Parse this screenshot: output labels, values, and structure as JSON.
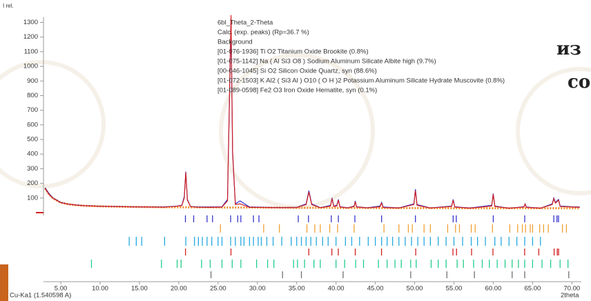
{
  "chart_data": {
    "type": "line",
    "y_label": "I rel.",
    "x_label": "2theta",
    "radiation": "Cu-Ka1 (1.540598 A)",
    "overlay_text": [
      "из",
      "со"
    ],
    "xlim": [
      2.8,
      71.2
    ],
    "ylim": [
      0,
      1340
    ],
    "xticks": [
      {
        "value": 5,
        "label": "5.00"
      },
      {
        "value": 10,
        "label": "10.00"
      },
      {
        "value": 15,
        "label": "15.00"
      },
      {
        "value": 20,
        "label": "20.00"
      },
      {
        "value": 25,
        "label": "25.00"
      },
      {
        "value": 30,
        "label": "30.00"
      },
      {
        "value": 35,
        "label": "35.00"
      },
      {
        "value": 40,
        "label": "40.00"
      },
      {
        "value": 45,
        "label": "45.00"
      },
      {
        "value": 50,
        "label": "50.00"
      },
      {
        "value": 55,
        "label": "55.00"
      },
      {
        "value": 60,
        "label": "60.00"
      },
      {
        "value": 65,
        "label": "65.00"
      },
      {
        "value": 70,
        "label": "70.00"
      }
    ],
    "yticks": [
      100,
      200,
      300,
      400,
      500,
      600,
      700,
      800,
      900,
      1000,
      1100,
      1200,
      1300
    ],
    "x": [
      3,
      3.5,
      4,
      5,
      6,
      7,
      8,
      10,
      12,
      14,
      16,
      18,
      19.8,
      20.4,
      20.7,
      20.9,
      21.1,
      21.5,
      22.5,
      24,
      25.5,
      26.2,
      26.45,
      26.65,
      26.85,
      27.2,
      27.8,
      29,
      31,
      33,
      35,
      36.2,
      36.55,
      36.9,
      38,
      39.3,
      39.5,
      39.7,
      40.1,
      40.3,
      40.5,
      41.5,
      42.3,
      42.45,
      42.6,
      44,
      45.6,
      45.8,
      46,
      48,
      49.9,
      50.1,
      50.3,
      52,
      54.7,
      54.9,
      55.1,
      57,
      59.8,
      60.0,
      60.2,
      62,
      63.9,
      64.05,
      64.2,
      66,
      67.5,
      67.7,
      67.9,
      68.1,
      68.3,
      68.5,
      70,
      71
    ],
    "series": [
      {
        "name": "6bl_Theta_2-Theta",
        "color": "#3434d0",
        "width": 1.2,
        "values": [
          170,
          130,
          100,
          70,
          58,
          52,
          48,
          44,
          42,
          40,
          39,
          38,
          45,
          50,
          110,
          280,
          90,
          42,
          38,
          38,
          40,
          90,
          750,
          1320,
          400,
          60,
          80,
          38,
          36,
          35,
          36,
          60,
          150,
          60,
          34,
          50,
          100,
          45,
          50,
          90,
          40,
          33,
          45,
          80,
          40,
          33,
          45,
          70,
          38,
          32,
          60,
          160,
          55,
          32,
          45,
          90,
          40,
          31,
          50,
          130,
          45,
          30,
          40,
          60,
          38,
          30,
          60,
          100,
          70,
          80,
          90,
          45,
          40,
          38
        ],
        "peaks": [
          20.85,
          21.9,
          23.6,
          24.3,
          26.6,
          27.5,
          27.9,
          29.5,
          30.2,
          35.2,
          36.5,
          39.4,
          40.3,
          42.4,
          45.8,
          50.1,
          54.9,
          55.3,
          60.0,
          64.0,
          67.7,
          68.1,
          68.3
        ]
      },
      {
        "name": "Calc. (exp. peaks) (Rp=36.7 %)",
        "color": "#d42020",
        "width": 1.2,
        "values": [
          165,
          125,
          98,
          68,
          57,
          51,
          47,
          43,
          41,
          39,
          38,
          37,
          44,
          48,
          100,
          275,
          85,
          41,
          37,
          36,
          38,
          80,
          780,
          1350,
          420,
          55,
          60,
          36,
          35,
          34,
          35,
          55,
          140,
          55,
          33,
          45,
          95,
          42,
          45,
          85,
          38,
          32,
          42,
          75,
          38,
          32,
          40,
          65,
          35,
          31,
          55,
          150,
          50,
          31,
          42,
          85,
          38,
          30,
          45,
          125,
          42,
          30,
          38,
          58,
          36,
          30,
          55,
          95,
          65,
          75,
          85,
          42,
          38,
          36
        ]
      },
      {
        "name": "Background",
        "color": "#f08a24",
        "width": 3,
        "dash": "2 2",
        "values": [
          165,
          125,
          98,
          68,
          57,
          51,
          47,
          43,
          41,
          39,
          38,
          37,
          37,
          37,
          37,
          37,
          37,
          36,
          36,
          36,
          35,
          35,
          35,
          35,
          35,
          35,
          35,
          35,
          34,
          34,
          33,
          33,
          33,
          33,
          33,
          33,
          33,
          33,
          32,
          32,
          32,
          32,
          32,
          32,
          32,
          32,
          31,
          31,
          31,
          31,
          31,
          31,
          31,
          31,
          30,
          30,
          30,
          30,
          30,
          30,
          30,
          30,
          30,
          30,
          30,
          30,
          30,
          30,
          30,
          30,
          30,
          30,
          30,
          30
        ]
      }
    ],
    "phases": [
      {
        "name": "[01-076-1936] Ti O2 Titanium Oxide Brookite (0.8%)",
        "color": "#f0a030",
        "positions": [
          25.3,
          30.8,
          32.8,
          36.3,
          37.3,
          38.0,
          39.2,
          40.2,
          42.3,
          46.1,
          48.0,
          49.2,
          49.7,
          51.2,
          52.0,
          54.2,
          55.2,
          55.7,
          57.2,
          57.7,
          59.9,
          62.1,
          63.1,
          63.7,
          64.1,
          64.7,
          65.0,
          65.9,
          66.4,
          67.0,
          68.8,
          69.3
        ]
      },
      {
        "name": "[01-075-1142] Na ( Al Si3 O8 ) Sodium Aluminum Silicate Albite high (9.7%)",
        "color": "#25a8e0",
        "positions": [
          13.7,
          14.6,
          15.3,
          18.2,
          20.9,
          22.0,
          22.5,
          23.0,
          23.6,
          24.2,
          25.0,
          25.5,
          26.6,
          27.2,
          27.9,
          28.3,
          29.0,
          29.5,
          30.1,
          30.5,
          31.2,
          32.0,
          33.1,
          34.3,
          35.0,
          35.6,
          36.2,
          36.8,
          37.5,
          38.3,
          39.0,
          40.0,
          41.2,
          42.0,
          43.0,
          44.1,
          45.0,
          45.8,
          46.5,
          47.2,
          48.0,
          48.8,
          49.6,
          50.4,
          51.2,
          52.0,
          53.0,
          54.0,
          55.0,
          56.1,
          57.2,
          58.0,
          59.0,
          60.2,
          61.0,
          62.0,
          63.0,
          64.0,
          65.0,
          66.0
        ]
      },
      {
        "name": "[00-046-1045] Si O2 Silicon Oxide Quartz, syn (88.6%)",
        "color": "#d42020",
        "positions": [
          20.86,
          26.64,
          36.54,
          39.47,
          40.29,
          42.45,
          45.79,
          50.14,
          54.87,
          55.33,
          57.24,
          59.96,
          63.99,
          65.79,
          67.74,
          68.14,
          68.31
        ]
      },
      {
        "name": "[01-072-1503] K Al2 ( Si3 Al ) O10 ( O H )2 Potassium Aluminum Silicate Hydrate Muscovite (0.8%)",
        "color": "#22cc88",
        "positions": [
          8.9,
          17.8,
          19.8,
          20.3,
          22.9,
          24.0,
          25.5,
          26.8,
          27.9,
          29.9,
          31.3,
          32.1,
          34.6,
          35.1,
          36.0,
          37.2,
          38.0,
          40.0,
          41.1,
          42.5,
          43.5,
          45.4,
          46.5,
          47.5,
          48.3,
          49.5,
          50.2,
          52.1,
          53.0,
          54.0,
          55.4,
          56.2,
          57.5,
          58.6,
          59.5,
          60.5,
          61.5,
          62.4,
          63.2,
          64.0,
          65.0,
          66.2,
          67.3,
          68.5,
          69.5
        ]
      },
      {
        "name": "[01-089-0598] Fe2 O3 Iron Oxide Hematite, syn (0.1%)",
        "color": "#707070",
        "positions": [
          24.1,
          33.2,
          35.6,
          40.9,
          49.5,
          54.1,
          57.6,
          62.4,
          64.0,
          69.6
        ]
      }
    ]
  }
}
